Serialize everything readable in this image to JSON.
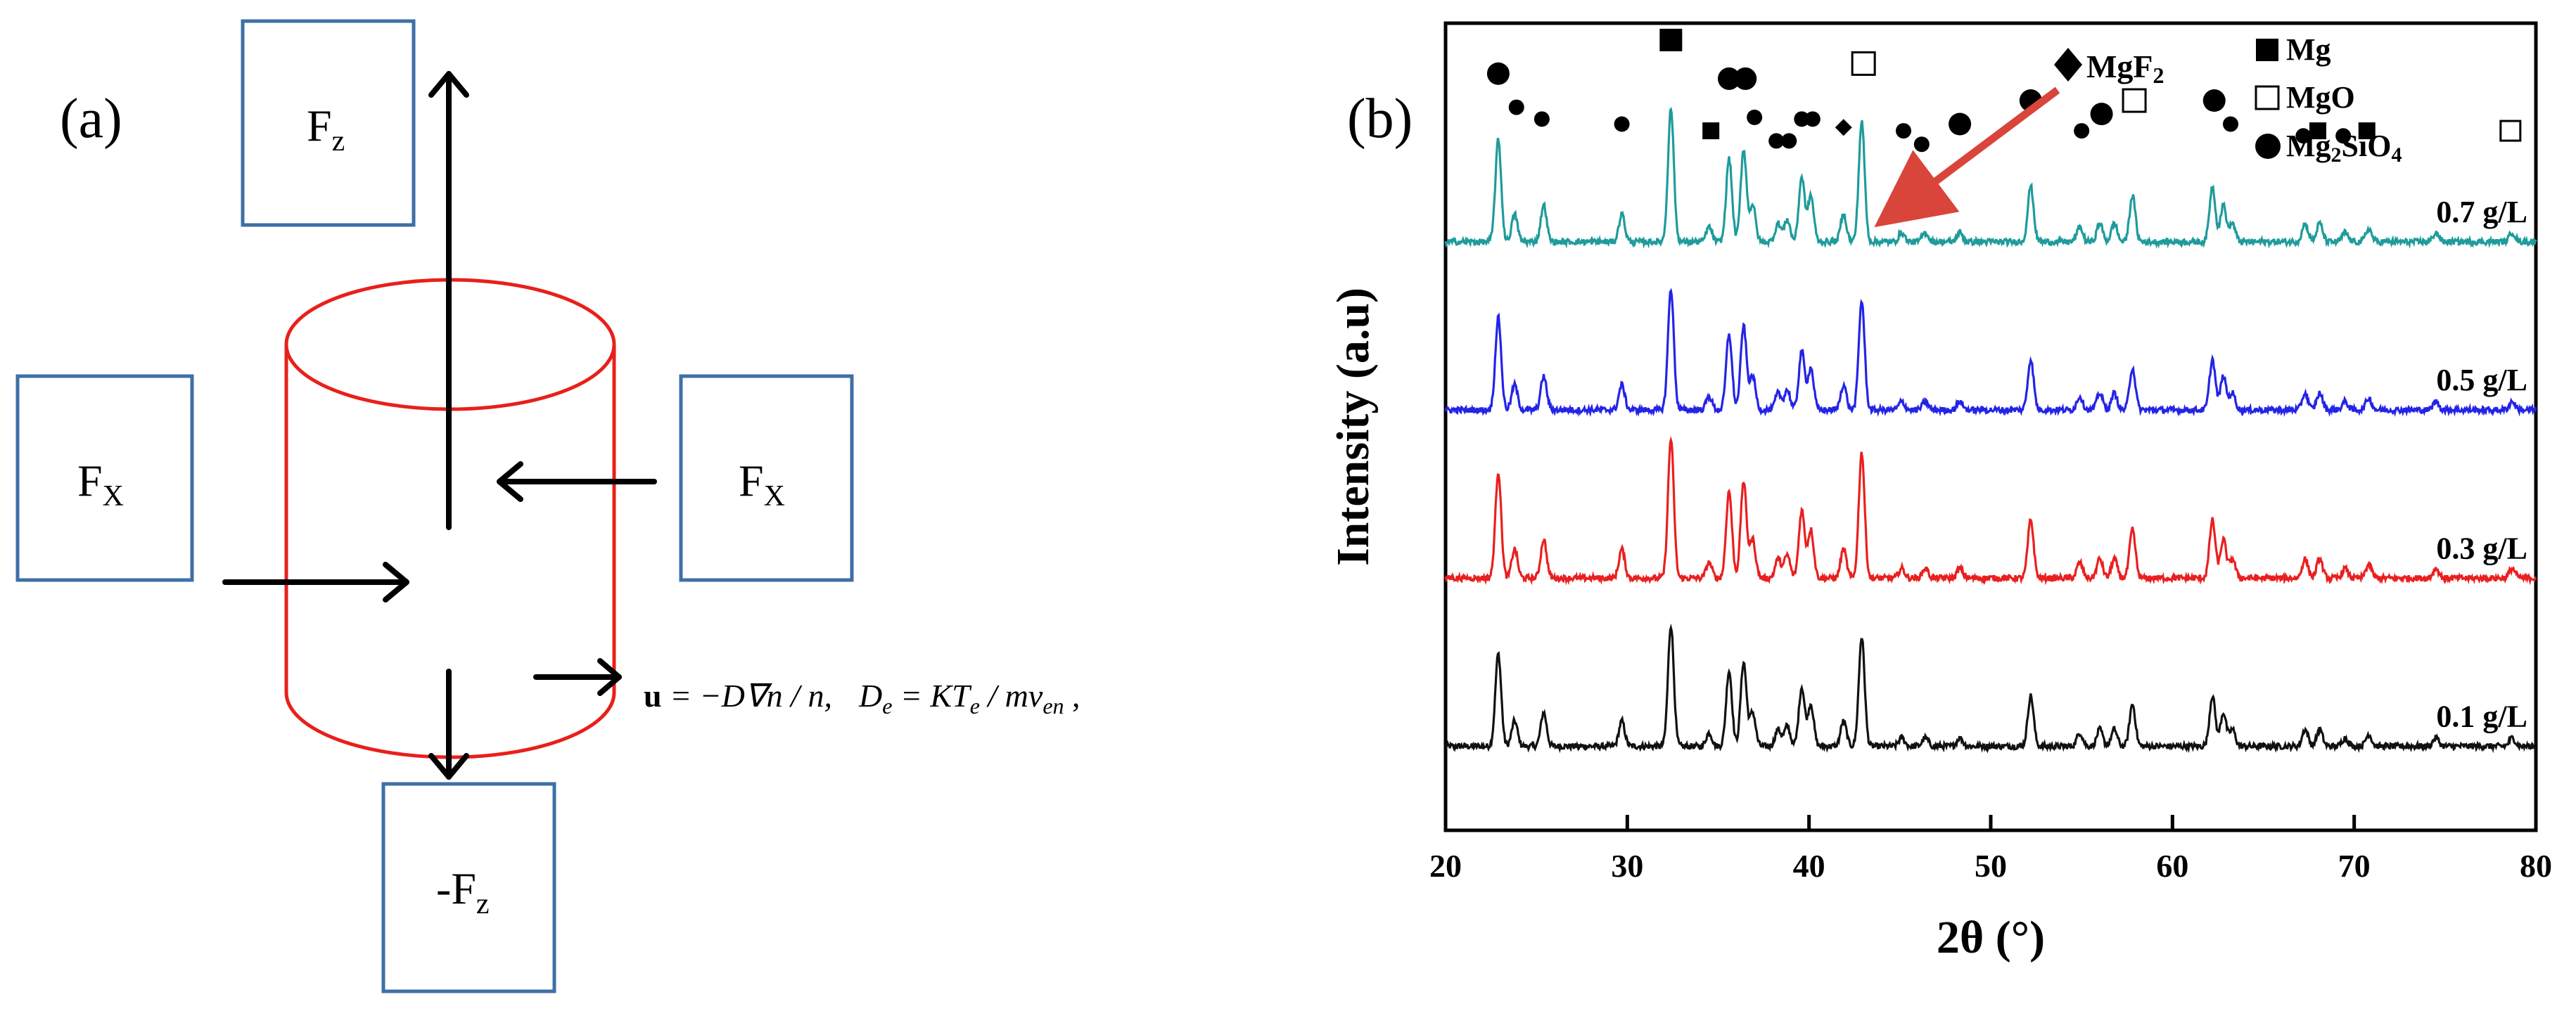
{
  "panel_a": {
    "label": "(a)",
    "boxes": [
      {
        "id": "fz-top",
        "main": "F",
        "sub": "z"
      },
      {
        "id": "fx-left",
        "main": "F",
        "sub": "X"
      },
      {
        "id": "fx-right",
        "main": "F",
        "sub": "X"
      },
      {
        "id": "fz-bottom",
        "main": "-F",
        "sub": "z"
      }
    ],
    "equation": {
      "u": "u",
      "part1": " = −D∇n / n,",
      "de_main": "D",
      "de_sub": "e",
      "part2": " = KT",
      "te_sub": "e",
      "part3": " / mν",
      "nu_sub": "en",
      "part4": " ,"
    },
    "colors": {
      "box": "#3e6fa8",
      "cylinder": "#e8201a",
      "arrow": "#000000"
    }
  },
  "chart_data": {
    "type": "line",
    "panel_label": "(b)",
    "xlabel": "2θ (°)",
    "ylabel": "Intensity (a.u)",
    "xlim": [
      20,
      80
    ],
    "xticks": [
      20,
      30,
      40,
      50,
      60,
      70,
      80
    ],
    "ylim": [
      -0.5,
      4.3
    ],
    "peaks": [
      [
        22.9,
        0.55
      ],
      [
        23.8,
        0.15
      ],
      [
        25.4,
        0.2
      ],
      [
        29.7,
        0.15
      ],
      [
        32.4,
        0.72
      ],
      [
        34.5,
        0.08
      ],
      [
        35.6,
        0.45
      ],
      [
        36.4,
        0.5
      ],
      [
        36.9,
        0.2
      ],
      [
        38.3,
        0.1
      ],
      [
        38.8,
        0.12
      ],
      [
        39.6,
        0.35
      ],
      [
        40.1,
        0.25
      ],
      [
        41.9,
        0.15
      ],
      [
        42.9,
        0.65
      ],
      [
        45.1,
        0.05
      ],
      [
        46.4,
        0.05
      ],
      [
        48.3,
        0.05
      ],
      [
        52.2,
        0.3
      ],
      [
        54.9,
        0.08
      ],
      [
        56.0,
        0.1
      ],
      [
        56.8,
        0.1
      ],
      [
        57.8,
        0.25
      ],
      [
        62.2,
        0.3
      ],
      [
        62.8,
        0.2
      ],
      [
        63.3,
        0.1
      ],
      [
        67.3,
        0.1
      ],
      [
        68.1,
        0.1
      ],
      [
        69.5,
        0.05
      ],
      [
        70.8,
        0.07
      ],
      [
        74.5,
        0.05
      ],
      [
        78.7,
        0.05
      ]
    ],
    "series": [
      {
        "name": "0.1 g/L",
        "label": "0.1 g/L",
        "color": "#111111",
        "baseline": 0.0,
        "scale": 1.0
      },
      {
        "name": "0.3 g/L",
        "label": "0.3 g/L",
        "color": "#ea1f1f",
        "baseline": 1.0,
        "scale": 1.15
      },
      {
        "name": "0.5 g/L",
        "label": "0.5 g/L",
        "color": "#2424e6",
        "baseline": 2.0,
        "scale": 1.0
      },
      {
        "name": "0.7 g/L",
        "label": "0.7 g/L",
        "color": "#1f9b9b",
        "baseline": 3.0,
        "scale": 1.1
      }
    ],
    "legend": [
      {
        "marker": "filled-square",
        "label": "Mg"
      },
      {
        "marker": "open-square",
        "label": "MgO"
      },
      {
        "marker": "filled-circle",
        "label": "Mg2SiO4",
        "label_main": "Mg",
        "label_sub1": "2",
        "label_mid": "SiO",
        "label_sub2": "4"
      }
    ],
    "mgf2_annotation": {
      "label": "MgF2",
      "label_main": "MgF",
      "label_sub": "2",
      "arrow_color": "#d9453a",
      "target_x": 42.9
    },
    "phase_markers": [
      {
        "type": "filled-circle",
        "x": 22.9,
        "y": 4.0,
        "size": "big"
      },
      {
        "type": "filled-circle",
        "x": 23.9,
        "y": 3.8,
        "size": "small"
      },
      {
        "type": "filled-circle",
        "x": 25.3,
        "y": 3.73,
        "size": "small"
      },
      {
        "type": "filled-circle",
        "x": 29.7,
        "y": 3.7,
        "size": "small"
      },
      {
        "type": "filled-square",
        "x": 32.4,
        "y": 4.2,
        "size": "big"
      },
      {
        "type": "filled-square",
        "x": 34.6,
        "y": 3.66,
        "size": "small"
      },
      {
        "type": "filled-circle",
        "x": 35.6,
        "y": 3.97,
        "size": "big"
      },
      {
        "type": "filled-circle",
        "x": 36.5,
        "y": 3.97,
        "size": "big"
      },
      {
        "type": "filled-circle",
        "x": 37.0,
        "y": 3.74,
        "size": "small"
      },
      {
        "type": "filled-circle",
        "x": 38.2,
        "y": 3.6,
        "size": "small"
      },
      {
        "type": "filled-circle",
        "x": 38.9,
        "y": 3.6,
        "size": "small"
      },
      {
        "type": "filled-circle",
        "x": 39.6,
        "y": 3.73,
        "size": "small"
      },
      {
        "type": "filled-circle",
        "x": 40.2,
        "y": 3.73,
        "size": "small"
      },
      {
        "type": "filled-diamond",
        "x": 41.9,
        "y": 3.68,
        "size": "small"
      },
      {
        "type": "open-square",
        "x": 43.0,
        "y": 4.06,
        "size": "big"
      },
      {
        "type": "filled-circle",
        "x": 45.2,
        "y": 3.66,
        "size": "small"
      },
      {
        "type": "filled-circle",
        "x": 46.2,
        "y": 3.58,
        "size": "small"
      },
      {
        "type": "filled-circle",
        "x": 48.3,
        "y": 3.7,
        "size": "big"
      },
      {
        "type": "filled-circle",
        "x": 52.2,
        "y": 3.84,
        "size": "big"
      },
      {
        "type": "filled-circle",
        "x": 55.0,
        "y": 3.66,
        "size": "small"
      },
      {
        "type": "filled-circle",
        "x": 56.1,
        "y": 3.76,
        "size": "big"
      },
      {
        "type": "open-square",
        "x": 57.9,
        "y": 3.84,
        "size": "big"
      },
      {
        "type": "filled-circle",
        "x": 62.3,
        "y": 3.84,
        "size": "big"
      },
      {
        "type": "filled-circle",
        "x": 63.2,
        "y": 3.7,
        "size": "small"
      },
      {
        "type": "filled-circle",
        "x": 67.2,
        "y": 3.63,
        "size": "small"
      },
      {
        "type": "filled-square",
        "x": 68.0,
        "y": 3.66,
        "size": "small"
      },
      {
        "type": "filled-circle",
        "x": 69.4,
        "y": 3.63,
        "size": "small"
      },
      {
        "type": "filled-square",
        "x": 70.7,
        "y": 3.66,
        "size": "small"
      },
      {
        "type": "open-square",
        "x": 78.6,
        "y": 3.66,
        "size": "small"
      }
    ]
  }
}
